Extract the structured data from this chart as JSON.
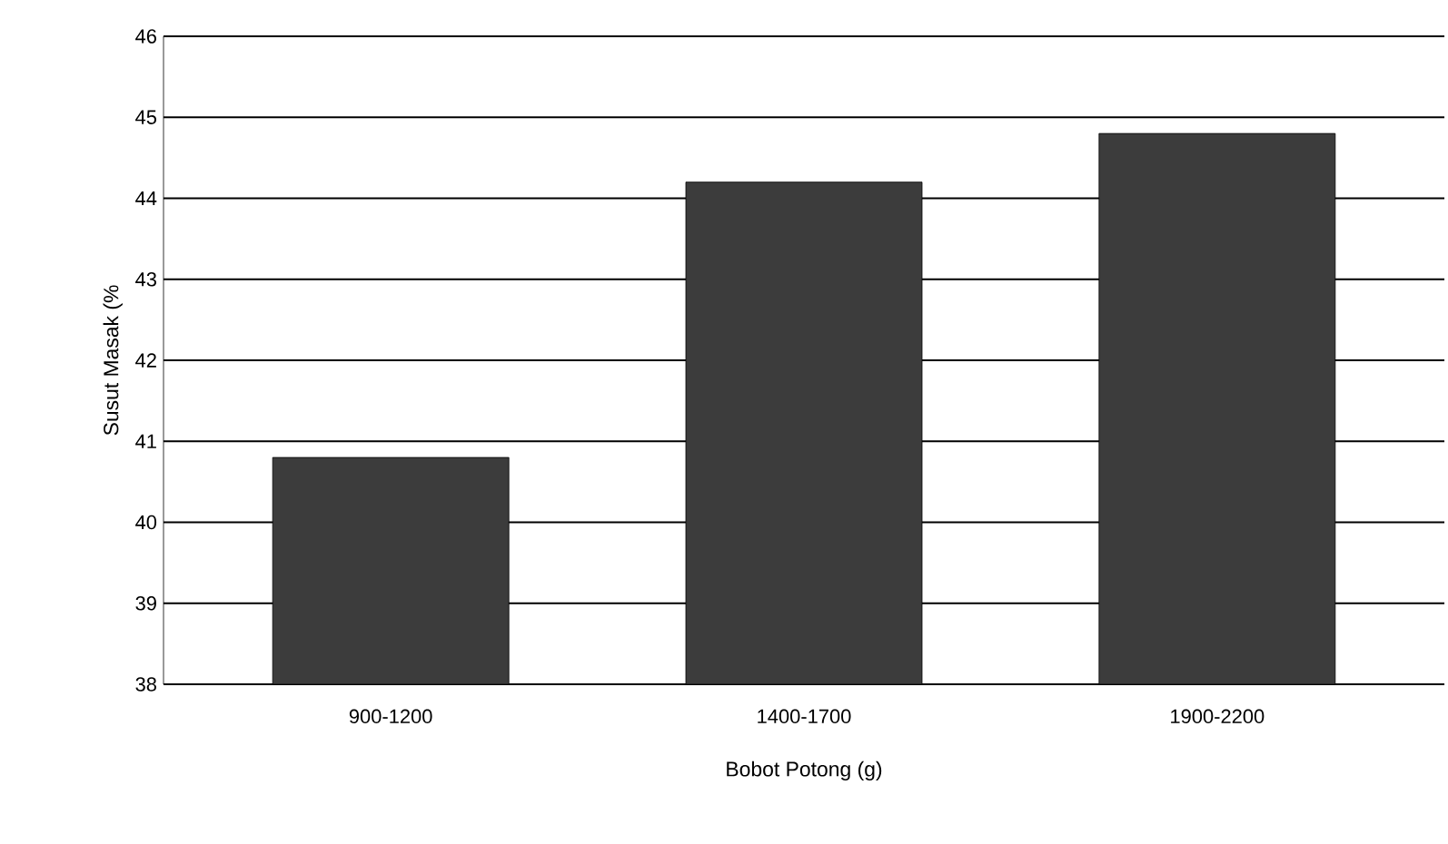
{
  "chart_data": {
    "type": "bar",
    "xlabel": "Bobot Potong (g)",
    "ylabel": "Susut Masak (%",
    "categories": [
      "900-1200",
      "1400-1700",
      "1900-2200"
    ],
    "values": [
      40.8,
      44.2,
      44.8
    ],
    "color": "#3c3c3c",
    "ylim": [
      38,
      46
    ],
    "yticks": [
      38,
      39,
      40,
      41,
      42,
      43,
      44,
      45,
      46
    ],
    "grid": "y"
  }
}
